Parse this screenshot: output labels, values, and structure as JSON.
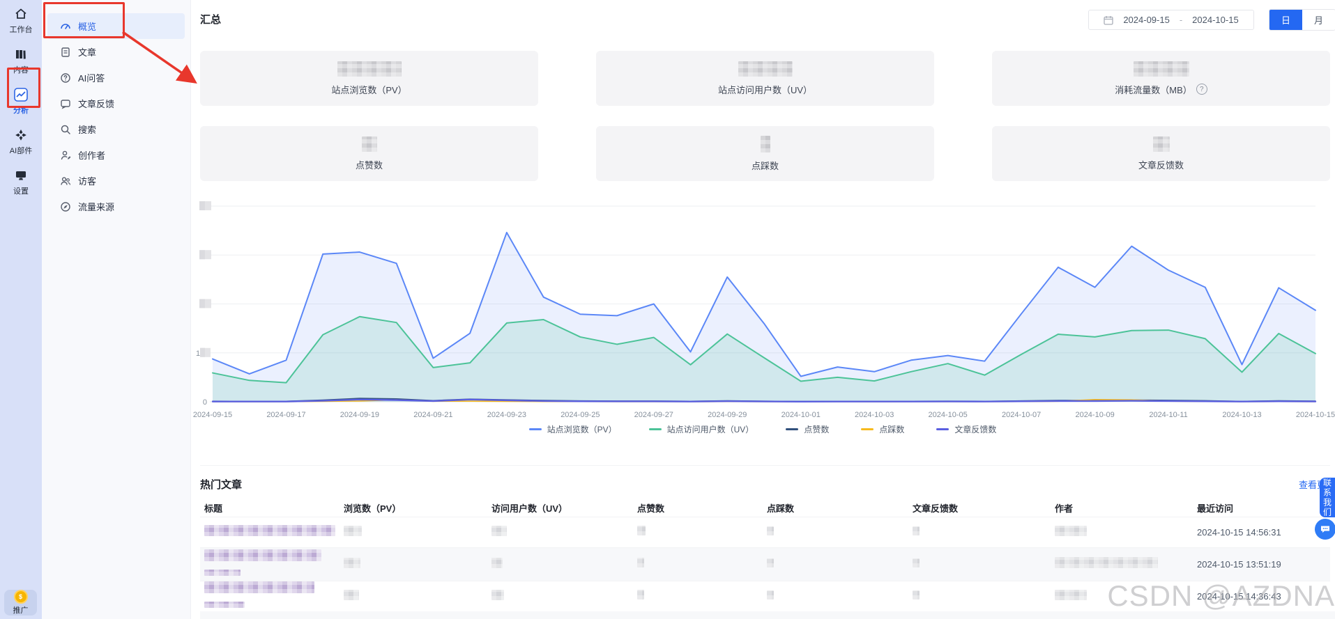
{
  "icons": {
    "question": "?",
    "dollar": "$"
  },
  "left_rail": {
    "items": [
      {
        "label": "工作台",
        "active": false
      },
      {
        "label": "内容",
        "active": false
      },
      {
        "label": "分析",
        "active": true
      },
      {
        "label": "AI部件",
        "active": false
      },
      {
        "label": "设置",
        "active": false
      }
    ],
    "promo_label": "推广"
  },
  "sidebar": {
    "items": [
      {
        "label": "概览",
        "active": true
      },
      {
        "label": "文章",
        "active": false
      },
      {
        "label": "AI问答",
        "active": false
      },
      {
        "label": "文章反馈",
        "active": false
      },
      {
        "label": "搜索",
        "active": false
      },
      {
        "label": "创作者",
        "active": false
      },
      {
        "label": "访客",
        "active": false
      },
      {
        "label": "流量来源",
        "active": false
      }
    ]
  },
  "header": {
    "title": "汇总",
    "date_start": "2024-09-15",
    "date_separator": "-",
    "date_end": "2024-10-15",
    "granularity": [
      {
        "label": "日",
        "active": true
      },
      {
        "label": "月",
        "active": false
      }
    ]
  },
  "summary_cards": [
    {
      "label": "站点浏览数（PV）",
      "value_blurred": true
    },
    {
      "label": "站点访问用户数（UV）",
      "value_blurred": true
    },
    {
      "label": "消耗流量数（MB）",
      "value_blurred": true,
      "has_info_icon": true
    },
    {
      "label": "点赞数",
      "value_blurred": true
    },
    {
      "label": "点踩数",
      "value_blurred": true
    },
    {
      "label": "文章反馈数",
      "value_blurred": true
    }
  ],
  "chart_data": {
    "type": "line",
    "x": [
      "2024-09-15",
      "2024-09-16",
      "2024-09-17",
      "2024-09-18",
      "2024-09-19",
      "2024-09-20",
      "2024-09-21",
      "2024-09-22",
      "2024-09-23",
      "2024-09-24",
      "2024-09-25",
      "2024-09-26",
      "2024-09-27",
      "2024-09-28",
      "2024-09-29",
      "2024-09-30",
      "2024-10-01",
      "2024-10-02",
      "2024-10-03",
      "2024-10-04",
      "2024-10-05",
      "2024-10-06",
      "2024-10-07",
      "2024-10-08",
      "2024-10-09",
      "2024-10-10",
      "2024-10-11",
      "2024-10-12",
      "2024-10-13",
      "2024-10-14",
      "2024-10-15"
    ],
    "x_tick_every": 2,
    "ylim": [
      0,
      4000
    ],
    "ytick_interval": 1000,
    "y_axis": {
      "zero_label": "0",
      "partial_thousand_label": "1",
      "other_tick_labels_blurred": true
    },
    "grid": true,
    "legend_position": "bottom",
    "series": [
      {
        "name": "站点浏览数（PV）",
        "color": "#5b87f7",
        "fill": "rgba(91,135,247,0.12)",
        "values": [
          875,
          570,
          850,
          3020,
          3060,
          2830,
          890,
          1400,
          3460,
          2140,
          1790,
          1760,
          2000,
          1020,
          2550,
          1600,
          520,
          710,
          615,
          850,
          945,
          830,
          1800,
          2750,
          2340,
          3180,
          2690,
          2340,
          760,
          2330,
          1870
        ]
      },
      {
        "name": "站点访问用户数（UV）",
        "color": "#4cc398",
        "fill": "rgba(76,195,152,0.16)",
        "values": [
          590,
          437,
          390,
          1370,
          1740,
          1620,
          700,
          795,
          1610,
          1680,
          1325,
          1175,
          1315,
          757,
          1385,
          900,
          420,
          500,
          425,
          615,
          780,
          545,
          970,
          1380,
          1325,
          1455,
          1465,
          1290,
          605,
          1395,
          985
        ]
      },
      {
        "name": "点赞数",
        "color": "#31507c",
        "fill": null,
        "values": [
          12,
          8,
          10,
          35,
          70,
          60,
          25,
          55,
          40,
          28,
          18,
          15,
          16,
          10,
          20,
          12,
          6,
          8,
          8,
          10,
          12,
          9,
          18,
          28,
          28,
          35,
          30,
          22,
          8,
          20,
          14
        ]
      },
      {
        "name": "点踩数",
        "color": "#f7ba1e",
        "fill": null,
        "values": [
          2,
          1,
          2,
          8,
          15,
          40,
          10,
          12,
          8,
          5,
          4,
          3,
          3,
          2,
          4,
          2,
          1,
          2,
          1,
          2,
          3,
          2,
          5,
          10,
          45,
          40,
          12,
          6,
          2,
          5,
          3
        ]
      },
      {
        "name": "文章反馈数",
        "color": "#5a5fe0",
        "fill": null,
        "values": [
          5,
          4,
          5,
          20,
          45,
          35,
          15,
          45,
          30,
          15,
          10,
          8,
          8,
          5,
          12,
          6,
          3,
          4,
          4,
          5,
          6,
          5,
          10,
          15,
          15,
          20,
          15,
          10,
          4,
          10,
          6
        ]
      }
    ]
  },
  "hot_articles": {
    "title": "热门文章",
    "view_more": "查看更多",
    "columns": [
      "标题",
      "浏览数（PV）",
      "访问用户数（UV）",
      "点赞数",
      "点踩数",
      "文章反馈数",
      "作者",
      "最近访问"
    ],
    "rows": [
      {
        "title_blurred": true,
        "metrics_blurred": true,
        "author_blurred": true,
        "last_visit": "2024-10-15 14:56:31"
      },
      {
        "title_blurred": true,
        "metrics_blurred": true,
        "author_blurred": true,
        "last_visit": "2024-10-15 13:51:19"
      },
      {
        "title_blurred": true,
        "metrics_blurred": true,
        "author_blurred": true,
        "last_visit": "2024-10-15 14:36:43"
      }
    ]
  },
  "floats": {
    "contact_label": "联系我们"
  },
  "watermark": "CSDN @AZDNA"
}
